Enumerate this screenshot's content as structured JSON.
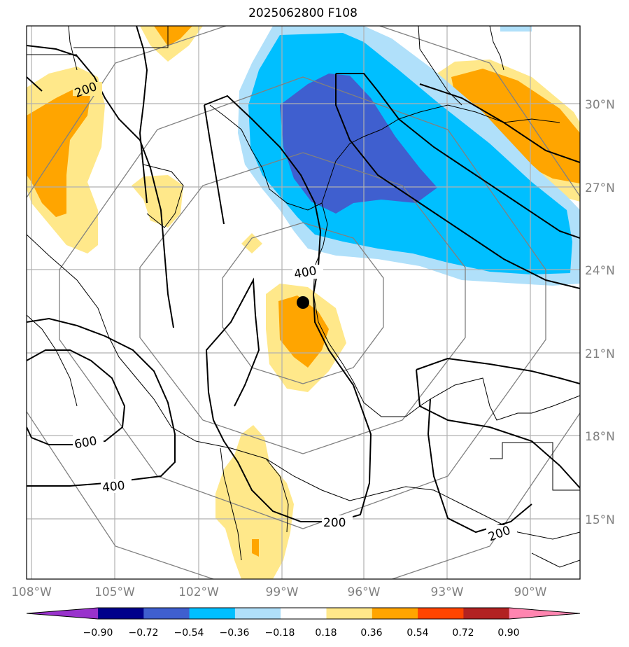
{
  "title": "2025062800 F108",
  "lon_ticks": [
    "108°W",
    "105°W",
    "102°W",
    "99°W",
    "96°W",
    "93°W",
    "90°W"
  ],
  "lat_ticks": [
    "30°N",
    "27°N",
    "24°N",
    "21°N",
    "18°N",
    "15°N"
  ],
  "contour_labels": [
    "200",
    "400",
    "600",
    "400",
    "200",
    "200"
  ],
  "colorbar": {
    "tick_labels": [
      "−0.90",
      "−0.72",
      "−0.54",
      "−0.36",
      "−0.18",
      "0.18",
      "0.36",
      "0.54",
      "0.72",
      "0.90"
    ],
    "colors": [
      "#9932cc",
      "#00008b",
      "#3f5fcf",
      "#00bfff",
      "#b0e0fa",
      "#ffffff",
      "#ffe88a",
      "#ffa500",
      "#ff4500",
      "#b22222",
      "#ff85b0"
    ]
  },
  "storm_marker": {
    "lon": -98.3,
    "lat": 22.8
  }
}
